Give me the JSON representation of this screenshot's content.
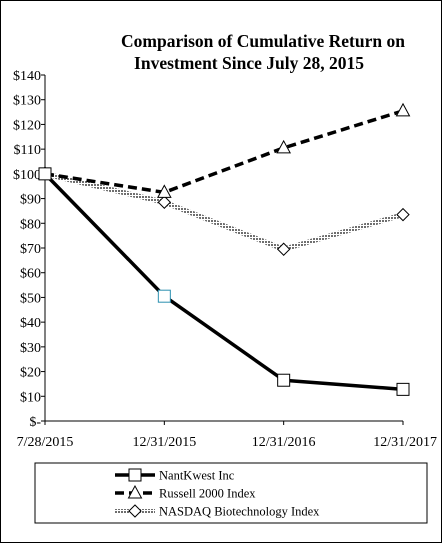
{
  "chart_data": {
    "type": "line",
    "title_lines": [
      "Comparison  of Cumulative  Return  on",
      "Investment Since July 28, 2015"
    ],
    "categories": [
      "7/28/2015",
      "12/31/2015",
      "12/31/2016",
      "12/31/2017"
    ],
    "y_tick_labels": [
      "$-",
      "$10",
      "$20",
      "$30",
      "$40",
      "$50",
      "$60",
      "$70",
      "$80",
      "$90",
      "$100",
      "$110",
      "$120",
      "$130",
      "$140"
    ],
    "ylim": [
      0,
      140
    ],
    "y_step": 10,
    "grid": false,
    "legend_position": "bottom",
    "series": [
      {
        "name": "NantKwest Inc",
        "values": [
          100,
          50.5,
          16.5,
          12.8
        ],
        "color": "#000000",
        "style": "solid",
        "marker": "square"
      },
      {
        "name": "Russell 2000 Index",
        "values": [
          100,
          92.5,
          110.5,
          125.5
        ],
        "color": "#000000",
        "style": "dashed",
        "marker": "triangle"
      },
      {
        "name": "NASDAQ Biotechnology Index",
        "values": [
          100,
          88.5,
          69.5,
          83.5
        ],
        "color": "#808080",
        "style": "hatched",
        "marker": "diamond"
      }
    ]
  }
}
